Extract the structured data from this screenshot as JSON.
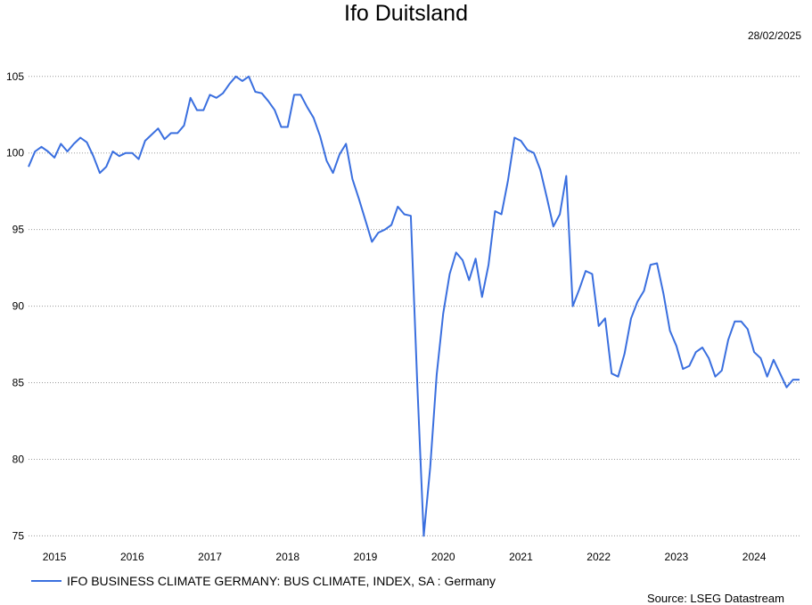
{
  "chart_data": {
    "type": "line",
    "title": "Ifo Duitsland",
    "date": "28/02/2025",
    "source": "Source: LSEG Datastream",
    "xlabel": "",
    "ylabel": "",
    "ylim": [
      74.5,
      106.5
    ],
    "yticks": [
      75,
      80,
      85,
      90,
      95,
      100,
      105
    ],
    "xticks": [
      "2015",
      "2016",
      "2017",
      "2018",
      "2019",
      "2020",
      "2021",
      "2022",
      "2023",
      "2024"
    ],
    "xstart": "2014-09",
    "grid": "horizontal dotted",
    "legend_position": "bottom-left",
    "line_color": "#3a6fdf",
    "series": [
      {
        "name": "IFO BUSINESS CLIMATE GERMANY: BUS CLIMATE, INDEX, SA : Germany",
        "values": [
          99.1,
          100.1,
          100.4,
          100.1,
          99.7,
          100.6,
          100.1,
          100.6,
          101.0,
          100.7,
          99.8,
          98.7,
          99.1,
          100.1,
          99.8,
          100.0,
          100.0,
          99.6,
          100.8,
          101.2,
          101.6,
          100.9,
          101.3,
          101.3,
          101.8,
          103.6,
          102.8,
          102.8,
          103.8,
          103.6,
          103.9,
          104.5,
          105.0,
          104.7,
          105.0,
          104.0,
          103.9,
          103.4,
          102.8,
          101.7,
          101.7,
          103.8,
          103.8,
          103.0,
          102.3,
          101.1,
          99.5,
          98.7,
          99.9,
          100.6,
          98.3,
          97.0,
          95.6,
          94.2,
          94.8,
          95.0,
          95.3,
          96.5,
          96.0,
          95.9,
          85.0,
          75.0,
          79.5,
          85.5,
          89.5,
          92.1,
          93.5,
          93.0,
          91.7,
          93.1,
          90.6,
          92.7,
          96.2,
          96.0,
          98.2,
          101.0,
          100.8,
          100.2,
          100.0,
          98.9,
          97.1,
          95.2,
          96.0,
          98.5,
          90.0,
          91.1,
          92.3,
          92.1,
          88.7,
          89.2,
          85.6,
          85.4,
          86.9,
          89.2,
          90.3,
          91.0,
          92.7,
          92.8,
          90.8,
          88.4,
          87.4,
          85.9,
          86.1,
          87.0,
          87.3,
          86.6,
          85.4,
          85.8,
          87.8,
          89.0,
          89.0,
          88.5,
          87.0,
          86.6,
          85.4,
          86.5,
          85.6,
          84.7,
          85.2,
          85.2
        ]
      }
    ]
  }
}
